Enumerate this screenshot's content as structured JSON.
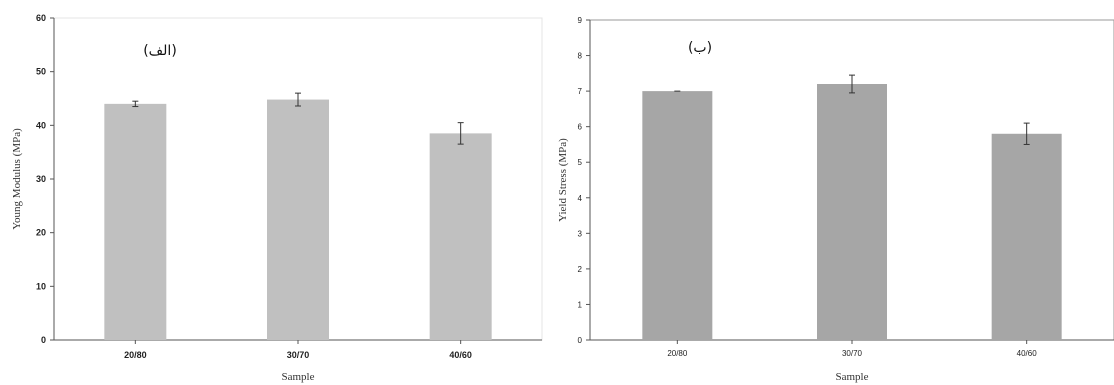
{
  "chart_data": [
    {
      "type": "bar",
      "panel_label": "(الف)",
      "categories": [
        "20/80",
        "30/70",
        "40/60"
      ],
      "values": [
        44,
        44.8,
        38.5
      ],
      "error": [
        0.5,
        1.2,
        2.0
      ],
      "xlabel": "Sample",
      "ylabel": "Young Modulus (MPa)",
      "ylim": [
        0,
        60
      ],
      "yticks": [
        "0",
        "10",
        "20",
        "30",
        "40",
        "50",
        "60"
      ],
      "bar_color": "#c0c0c0",
      "grid": false
    },
    {
      "type": "bar",
      "panel_label": "(ب)",
      "categories": [
        "20/80",
        "30/70",
        "40/60"
      ],
      "values": [
        7.0,
        7.2,
        5.8
      ],
      "error": [
        0.0,
        0.25,
        0.3
      ],
      "xlabel": "Sample",
      "ylabel": "Yield Stress (MPa)",
      "ylim": [
        0,
        9
      ],
      "yticks": [
        "0",
        "1",
        "2",
        "3",
        "4",
        "5",
        "6",
        "7",
        "8",
        "9"
      ],
      "bar_color": "#a6a6a6",
      "grid": false
    }
  ]
}
